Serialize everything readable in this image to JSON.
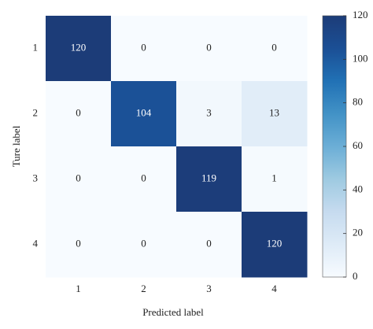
{
  "chart_data": {
    "type": "heatmap",
    "x_categories": [
      "1",
      "2",
      "3",
      "4"
    ],
    "y_categories": [
      "1",
      "2",
      "3",
      "4"
    ],
    "values": [
      [
        120,
        0,
        0,
        0
      ],
      [
        0,
        104,
        3,
        13
      ],
      [
        0,
        0,
        119,
        1
      ],
      [
        0,
        0,
        0,
        120
      ]
    ],
    "xlabel": "Predicted label",
    "ylabel": "Ture label",
    "clim": [
      0,
      120
    ],
    "cticks": [
      0,
      20,
      40,
      60,
      80,
      100,
      120
    ],
    "colormap": [
      "#f7fbff",
      "#deebf7",
      "#c6dbef",
      "#9ecae1",
      "#6baed6",
      "#4292c6",
      "#2171b5",
      "#1b4f95",
      "#1c3c78"
    ]
  }
}
